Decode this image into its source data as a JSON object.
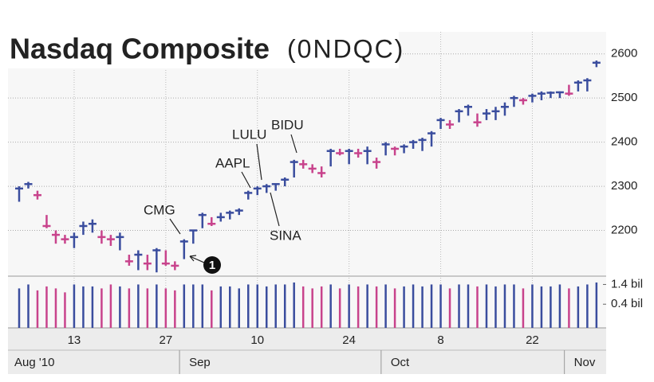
{
  "chart_data": {
    "type": "ohlc",
    "title": "Nasdaq Composite",
    "subtitle": "(0NDQC)",
    "categories": [
      null,
      null,
      null,
      null,
      null,
      null,
      "13",
      null,
      null,
      null,
      null,
      null,
      null,
      null,
      null,
      null,
      "27",
      null,
      null,
      null,
      null,
      null,
      null,
      null,
      null,
      null,
      "10",
      null,
      null,
      null,
      null,
      null,
      null,
      null,
      null,
      null,
      "24",
      null,
      null,
      null,
      null,
      null,
      null,
      null,
      null,
      null,
      "8",
      null,
      null,
      null,
      null,
      null,
      null,
      null,
      null,
      null,
      "22",
      null,
      null,
      null,
      null,
      null,
      null,
      null
    ],
    "months": [
      "Aug '10",
      null,
      null,
      null,
      null,
      null,
      null,
      null,
      null,
      null,
      null,
      null,
      null,
      null,
      null,
      null,
      null,
      null,
      "Sep",
      null,
      null,
      null,
      null,
      null,
      null,
      null,
      null,
      null,
      null,
      null,
      null,
      null,
      null,
      null,
      null,
      null,
      null,
      null,
      null,
      null,
      "Oct",
      null,
      null,
      null,
      null,
      null,
      null,
      null,
      null,
      null,
      null,
      null,
      null,
      null,
      null,
      null,
      null,
      null,
      null,
      null,
      "Nov",
      null,
      null,
      null
    ],
    "high": [
      2300,
      2310,
      2290,
      2235,
      2200,
      2190,
      2195,
      2220,
      2225,
      2200,
      2190,
      2195,
      2145,
      2155,
      2145,
      2160,
      2155,
      2130,
      2180,
      2200,
      2240,
      2230,
      2240,
      2245,
      2250,
      2290,
      2300,
      2305,
      2305,
      2320,
      2360,
      2360,
      2350,
      2345,
      2385,
      2385,
      2385,
      2385,
      2390,
      2365,
      2400,
      2390,
      2395,
      2405,
      2410,
      2425,
      2455,
      2450,
      2475,
      2485,
      2465,
      2475,
      2480,
      2490,
      2505,
      2500,
      2510,
      2515,
      2515,
      2515,
      2530,
      2540,
      2545,
      2585
    ],
    "low": [
      2265,
      2295,
      2270,
      2205,
      2170,
      2170,
      2160,
      2190,
      2195,
      2170,
      2165,
      2155,
      2120,
      2110,
      2110,
      2105,
      2120,
      2110,
      2135,
      2170,
      2205,
      2210,
      2220,
      2225,
      2235,
      2270,
      2280,
      2285,
      2290,
      2300,
      2320,
      2340,
      2330,
      2320,
      2345,
      2370,
      2350,
      2365,
      2350,
      2340,
      2370,
      2370,
      2375,
      2385,
      2380,
      2390,
      2430,
      2430,
      2445,
      2460,
      2435,
      2450,
      2450,
      2460,
      2480,
      2485,
      2490,
      2495,
      2500,
      2500,
      2505,
      2515,
      2515,
      2570
    ],
    "close": [
      2295,
      2305,
      2280,
      2210,
      2190,
      2180,
      2185,
      2210,
      2215,
      2185,
      2180,
      2185,
      2130,
      2145,
      2125,
      2155,
      2125,
      2120,
      2175,
      2200,
      2235,
      2215,
      2230,
      2240,
      2245,
      2285,
      2295,
      2300,
      2305,
      2315,
      2355,
      2350,
      2340,
      2330,
      2380,
      2375,
      2380,
      2375,
      2380,
      2355,
      2395,
      2385,
      2390,
      2400,
      2405,
      2420,
      2450,
      2440,
      2470,
      2480,
      2445,
      2465,
      2470,
      2480,
      2500,
      2495,
      2505,
      2510,
      2512,
      2513,
      2510,
      2535,
      2540,
      2580
    ],
    "ylim": [
      2100,
      2650
    ],
    "yticks": [
      2200,
      2300,
      2400,
      2500,
      2600
    ],
    "volume": {
      "values": [
        1.2,
        1.4,
        1.1,
        1.3,
        1.2,
        1.0,
        1.4,
        1.3,
        1.3,
        1.2,
        1.4,
        1.3,
        1.2,
        1.4,
        1.2,
        1.4,
        1.2,
        1.1,
        1.4,
        1.4,
        1.4,
        1.1,
        1.3,
        1.3,
        1.2,
        1.4,
        1.4,
        1.3,
        1.4,
        1.4,
        1.5,
        1.3,
        1.2,
        1.3,
        1.4,
        1.2,
        1.4,
        1.3,
        1.4,
        1.3,
        1.4,
        1.2,
        1.3,
        1.4,
        1.3,
        1.4,
        1.4,
        1.2,
        1.4,
        1.4,
        1.3,
        1.4,
        1.3,
        1.4,
        1.4,
        1.2,
        1.4,
        1.3,
        1.3,
        1.4,
        1.2,
        1.3,
        1.4,
        1.5
      ],
      "ylim": [
        -0.8,
        1.7
      ],
      "yticks": [
        {
          "value": 1.4,
          "label": "1.4 bil"
        },
        {
          "value": 0.4,
          "label": "0.4 bil"
        }
      ]
    },
    "up_color": "#3a4d9e",
    "down_color": "#c8438c",
    "grid": true,
    "annotations": [
      {
        "text": "CMG"
      },
      {
        "text": "AAPL"
      },
      {
        "text": "LULU"
      },
      {
        "text": "SINA"
      },
      {
        "text": "BIDU"
      }
    ],
    "marker": "1"
  }
}
